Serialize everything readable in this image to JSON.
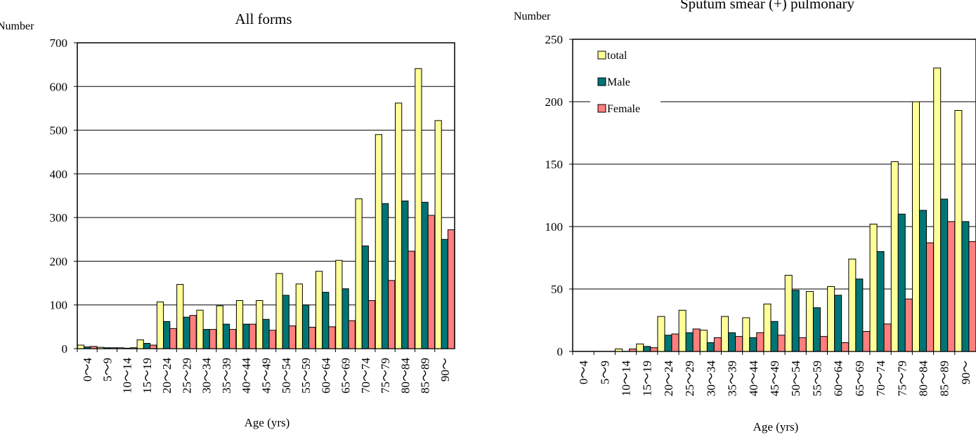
{
  "charts": [
    {
      "title": "All forms",
      "ylabel": "Number",
      "xlabel": "Age (yrs)"
    },
    {
      "title": "Sputum smear (+) pulmonary",
      "ylabel": "Number",
      "xlabel": "Age (yrs)"
    }
  ],
  "colors": {
    "total": "#ffff99",
    "male": "#007575",
    "female": "#ff7e7e"
  },
  "chart_data": [
    {
      "type": "bar",
      "title": "All forms",
      "xlabel": "Age (yrs)",
      "ylabel": "Number",
      "ylim": [
        0,
        700
      ],
      "yticks": [
        0,
        100,
        200,
        300,
        400,
        500,
        600,
        700
      ],
      "grid": true,
      "categories": [
        "0～4",
        "5～9",
        "10～14",
        "15～19",
        "20～24",
        "25～29",
        "30～34",
        "35～39",
        "40～44",
        "45～49",
        "50～54",
        "55～59",
        "60～64",
        "65～69",
        "70～74",
        "75～79",
        "80～84",
        "85～89",
        "90～"
      ],
      "series": [
        {
          "key": "total",
          "values": [
            8,
            3,
            2,
            20,
            107,
            147,
            88,
            98,
            110,
            110,
            172,
            148,
            177,
            202,
            343,
            490,
            562,
            641,
            522
          ]
        },
        {
          "key": "male",
          "values": [
            4,
            2,
            1,
            12,
            62,
            72,
            44,
            56,
            56,
            67,
            122,
            100,
            129,
            137,
            235,
            332,
            338,
            335,
            250
          ]
        },
        {
          "key": "female",
          "values": [
            5,
            2,
            2,
            8,
            46,
            76,
            44,
            44,
            56,
            42,
            52,
            49,
            50,
            64,
            110,
            156,
            223,
            305,
            272
          ]
        }
      ]
    },
    {
      "type": "bar",
      "title": "Sputum smear (+) pulmonary",
      "xlabel": "Age (yrs)",
      "ylabel": "Number",
      "ylim": [
        0,
        250
      ],
      "yticks": [
        0,
        50,
        100,
        150,
        200,
        250
      ],
      "grid": true,
      "legend_position": "top-left",
      "categories": [
        "0～4",
        "5～9",
        "10～14",
        "15～19",
        "20～24",
        "25～29",
        "30～34",
        "35～39",
        "40～44",
        "45～49",
        "50～54",
        "55～59",
        "60～64",
        "65～69",
        "70～74",
        "75～79",
        "80～84",
        "85～89",
        "90～"
      ],
      "series": [
        {
          "key": "total",
          "name": "total",
          "values": [
            0,
            0,
            2,
            6,
            28,
            33,
            17,
            28,
            27,
            38,
            61,
            48,
            52,
            74,
            102,
            152,
            200,
            227,
            193
          ]
        },
        {
          "key": "male",
          "name": "Male",
          "values": [
            0,
            0,
            0,
            4,
            13,
            15,
            7,
            15,
            11,
            24,
            49,
            35,
            45,
            58,
            80,
            110,
            113,
            122,
            104
          ]
        },
        {
          "key": "female",
          "name": "Female",
          "values": [
            0,
            0,
            2,
            3,
            14,
            18,
            11,
            12,
            15,
            13,
            11,
            12,
            7,
            16,
            22,
            42,
            87,
            104,
            88
          ]
        }
      ]
    }
  ]
}
